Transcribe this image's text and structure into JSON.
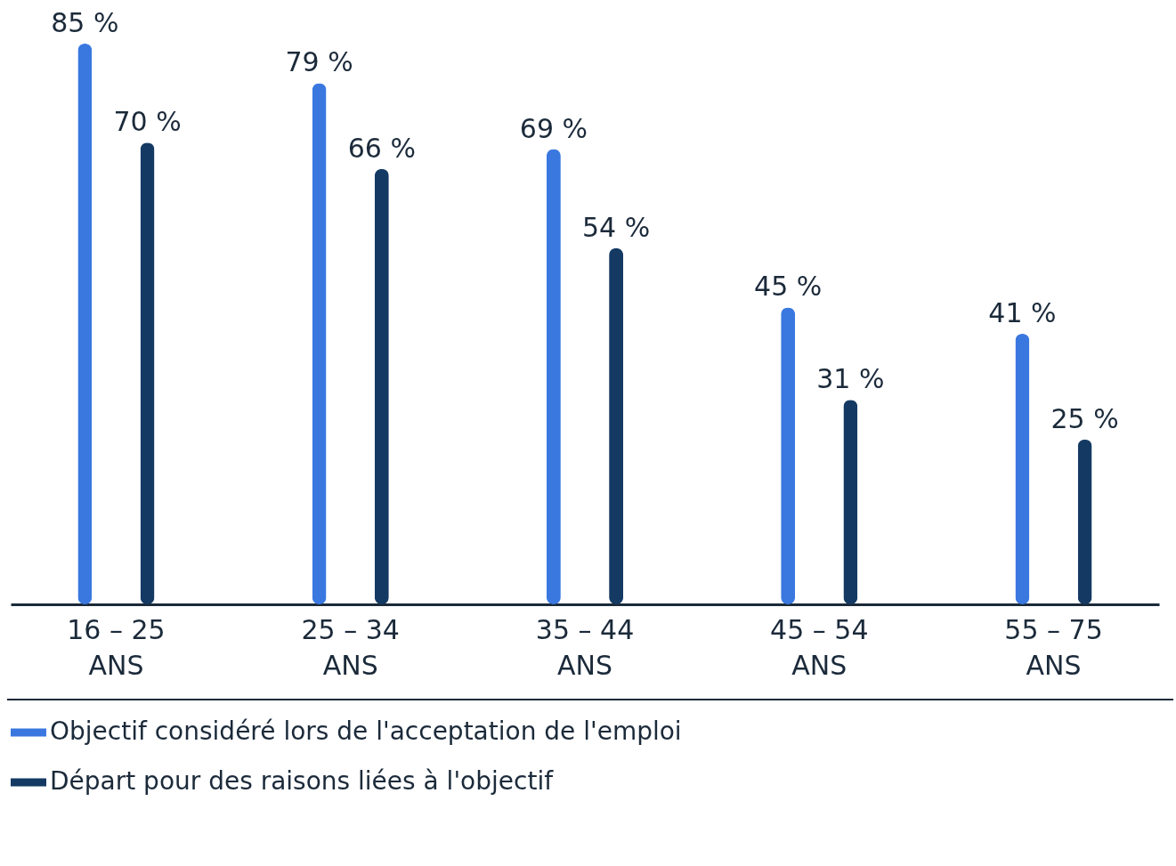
{
  "chart_data": {
    "type": "bar",
    "categories": [
      "16 – 25\nANS",
      "25 – 34\nANS",
      "35 – 44\nANS",
      "45 – 54\nANS",
      "55 – 75\nANS"
    ],
    "series": [
      {
        "name": "Objectif considéré lors de l'acceptation de l'emploi",
        "color": "#3a78e0",
        "values": [
          85,
          79,
          69,
          45,
          41
        ],
        "value_labels": [
          "85 %",
          "79 %",
          "69 %",
          "45 %",
          "41 %"
        ]
      },
      {
        "name": "Départ pour des raisons liées à l'objectif",
        "color": "#143a63",
        "values": [
          70,
          66,
          54,
          31,
          25
        ],
        "value_labels": [
          "70 %",
          "66 %",
          "54 %",
          "31 %",
          "25 %"
        ]
      }
    ],
    "grid": false,
    "legend": "bottom left"
  }
}
